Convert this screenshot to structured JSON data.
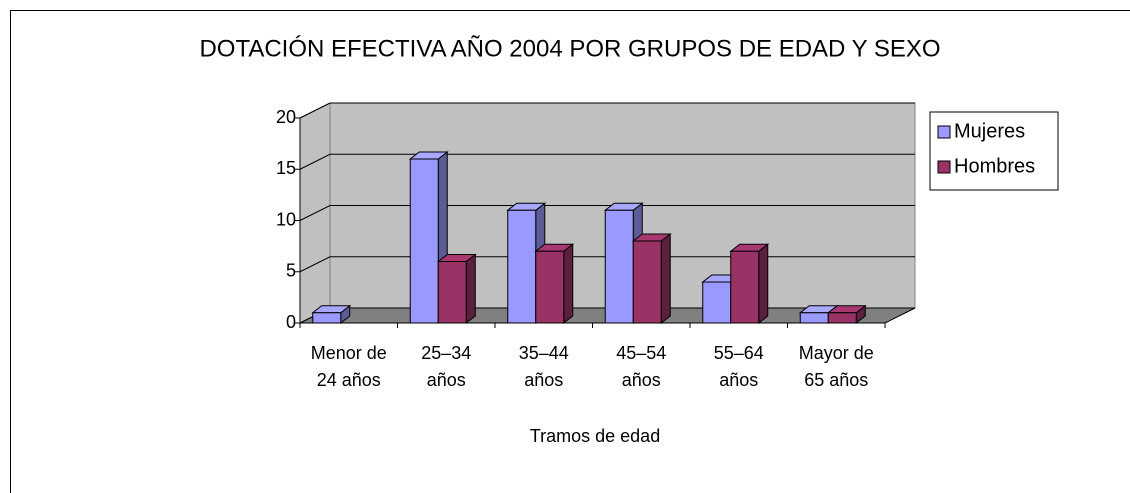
{
  "chart_data": {
    "type": "bar3d",
    "title": "DOTACIÓN EFECTIVA AÑO 2004 POR GRUPOS DE EDAD Y SEXO",
    "x_label": "Tramos de edad",
    "categories": [
      "Menor de\n24 años",
      "25–34\naños",
      "35–44\naños",
      "45–54\naños",
      "55–64\naños",
      "Mayor de\n65 años"
    ],
    "series": [
      {
        "name": "Mujeres",
        "color": "#9999ff",
        "values": [
          1,
          16,
          11,
          11,
          4,
          1
        ]
      },
      {
        "name": "Hombres",
        "color": "#993366",
        "values": [
          0,
          6,
          7,
          8,
          7,
          1
        ]
      }
    ],
    "ylim": [
      0,
      20
    ],
    "yticks": [
      0,
      5,
      10,
      15,
      20
    ],
    "grid": true,
    "legend": "right"
  }
}
